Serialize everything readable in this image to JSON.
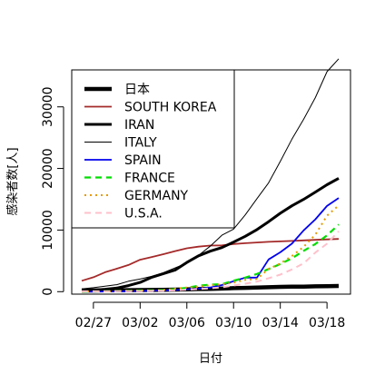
{
  "chart_data": {
    "type": "line",
    "xlabel": "日付",
    "ylabel": "感染者数[人]",
    "x": [
      "02/26",
      "02/27",
      "02/28",
      "02/29",
      "03/01",
      "03/02",
      "03/03",
      "03/04",
      "03/05",
      "03/06",
      "03/07",
      "03/08",
      "03/09",
      "03/10",
      "03/11",
      "03/12",
      "03/13",
      "03/14",
      "03/15",
      "03/16",
      "03/17",
      "03/18",
      "03/19"
    ],
    "xtick_labels": [
      "02/27",
      "03/02",
      "03/06",
      "03/10",
      "03/14",
      "03/18"
    ],
    "xtick_indices": [
      1,
      5,
      9,
      13,
      17,
      21
    ],
    "yticks": [
      0,
      10000,
      20000,
      30000
    ],
    "ylim": [
      -400,
      36000
    ],
    "legend_position": "top-left",
    "series": [
      {
        "name": "日本",
        "color": "#000000",
        "width": 4.5,
        "dash": "",
        "values": [
          190,
          210,
          230,
          240,
          250,
          260,
          280,
          300,
          330,
          360,
          420,
          460,
          500,
          580,
          620,
          680,
          720,
          780,
          820,
          830,
          860,
          880,
          920
        ]
      },
      {
        "name": "SOUTH KOREA",
        "color": "#a52a2a",
        "width": 1.8,
        "dash": "",
        "values": [
          1760,
          2340,
          3150,
          3730,
          4330,
          5190,
          5620,
          6090,
          6590,
          7040,
          7310,
          7480,
          7510,
          7740,
          7870,
          7980,
          8090,
          8160,
          8240,
          8330,
          8410,
          8480,
          8560
        ]
      },
      {
        "name": "IRAN",
        "color": "#000000",
        "width": 3,
        "dash": "",
        "values": [
          140,
          250,
          390,
          590,
          980,
          1500,
          2340,
          2920,
          3510,
          4750,
          5820,
          6570,
          7160,
          8040,
          8990,
          10080,
          11360,
          12730,
          13940,
          14990,
          16170,
          17360,
          18400
        ]
      },
      {
        "name": "ITALY",
        "color": "#000000",
        "width": 1,
        "dash": "",
        "values": [
          450,
          650,
          890,
          1130,
          1690,
          2040,
          2500,
          3090,
          3860,
          4640,
          5880,
          7380,
          9170,
          10150,
          12460,
          15110,
          17660,
          21160,
          24750,
          27980,
          31510,
          35710,
          37800
        ]
      },
      {
        "name": "SPAIN",
        "color": "#0000ee",
        "width": 1.8,
        "dash": "",
        "values": [
          13,
          15,
          32,
          45,
          84,
          120,
          165,
          222,
          259,
          400,
          500,
          673,
          1073,
          1695,
          2277,
          2277,
          5232,
          6391,
          7798,
          9942,
          11748,
          13910,
          15200
        ]
      },
      {
        "name": "FRANCE",
        "color": "#00dd00",
        "width": 2.2,
        "dash": "7,5",
        "values": [
          18,
          38,
          57,
          100,
          130,
          191,
          212,
          285,
          423,
          613,
          949,
          1126,
          1209,
          1784,
          2281,
          2876,
          3661,
          4499,
          5423,
          6633,
          7730,
          9134,
          10900
        ]
      },
      {
        "name": "GERMANY",
        "color": "#e69a00",
        "width": 2,
        "dash": "2,4",
        "values": [
          27,
          46,
          48,
          79,
          130,
          159,
          196,
          262,
          482,
          670,
          799,
          1040,
          1176,
          1457,
          1908,
          2078,
          3675,
          4585,
          5795,
          7272,
          9257,
          12327,
          14000
        ]
      },
      {
        "name": "U.S.A.",
        "color": "#ffc0cb",
        "width": 2,
        "dash": "7,5",
        "values": [
          59,
          60,
          62,
          70,
          76,
          100,
          124,
          158,
          221,
          319,
          435,
          541,
          704,
          994,
          1301,
          1630,
          2183,
          2770,
          3613,
          4596,
          6344,
          7783,
          9800
        ]
      }
    ]
  }
}
